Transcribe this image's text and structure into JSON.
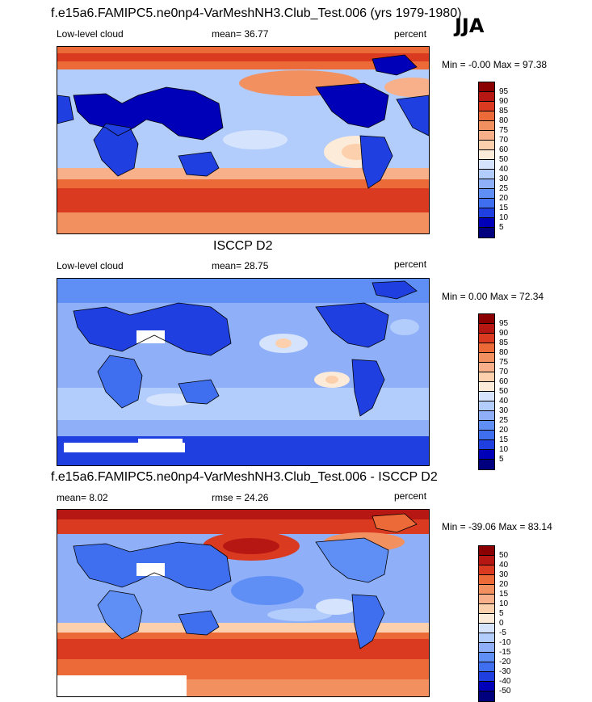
{
  "season": "JJA",
  "colors": {
    "abs_scale": [
      "#00007f",
      "#0000b9",
      "#1f3fe0",
      "#3f6fef",
      "#5f8ff5",
      "#8fb0f8",
      "#b2ccfb",
      "#d5e3fd",
      "#fdebd9",
      "#fcd0ad",
      "#f7b089",
      "#f2905f",
      "#ec6a38",
      "#d93a20",
      "#b71712",
      "#8a0000"
    ],
    "diff_scale": [
      "#00007f",
      "#0000b9",
      "#1f3fe0",
      "#3f6fef",
      "#5f8ff5",
      "#8fb0f8",
      "#b2ccfb",
      "#d5e3fd",
      "#fdebd9",
      "#fcd0ad",
      "#f7b089",
      "#f2905f",
      "#ec6a38",
      "#d93a20",
      "#b71712",
      "#8a0000"
    ],
    "coast": "#000000",
    "missing": "#ffffff"
  },
  "panels": [
    {
      "title": "f.e15a6.FAMIPC5.ne0np4-VarMeshNH3.Club_Test.006 (yrs 1979-1980)",
      "left_label": "Low-level cloud",
      "mid_label": "mean=  36.77",
      "right_label": "percent",
      "minmax": "Min =  -0.00 Max =  97.38",
      "levels": [
        "95",
        "90",
        "85",
        "80",
        "75",
        "70",
        "60",
        "50",
        "40",
        "30",
        "25",
        "20",
        "15",
        "10",
        "5"
      ]
    },
    {
      "title": "ISCCP D2",
      "left_label": "Low-level cloud",
      "mid_label": "mean=  28.75",
      "right_label": "percent",
      "minmax": "Min =   0.00 Max =  72.34",
      "levels": [
        "95",
        "90",
        "85",
        "80",
        "75",
        "70",
        "60",
        "50",
        "40",
        "30",
        "25",
        "20",
        "15",
        "10",
        "5"
      ]
    },
    {
      "title": "f.e15a6.FAMIPC5.ne0np4-VarMeshNH3.Club_Test.006 - ISCCP D2",
      "left_label": "mean=   8.02",
      "mid_label": "rmse =  24.26",
      "right_label": "percent",
      "minmax": "Min = -39.06 Max =  83.14",
      "levels": [
        "50",
        "40",
        "30",
        "20",
        "15",
        "10",
        "5",
        "0",
        "-5",
        "-10",
        "-15",
        "-20",
        "-30",
        "-40",
        "-50"
      ]
    }
  ]
}
